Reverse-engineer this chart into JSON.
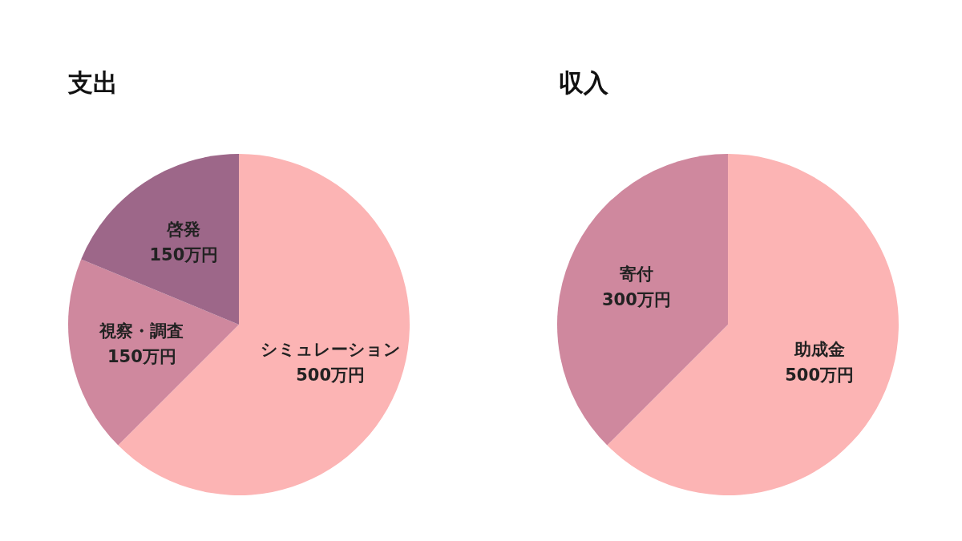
{
  "chart_data": [
    {
      "type": "pie",
      "title": "支出",
      "categories": [
        "シミュレーション",
        "視察・調査",
        "啓発"
      ],
      "values": [
        500,
        150,
        150
      ],
      "colors": [
        "#fcb4b4",
        "#cf889e",
        "#9d6789"
      ],
      "value_labels": [
        "500万円",
        "150万円",
        "150万円"
      ]
    },
    {
      "type": "pie",
      "title": "収入",
      "categories": [
        "助成金",
        "寄付"
      ],
      "values": [
        500,
        300
      ],
      "colors": [
        "#fcb4b4",
        "#cf889e"
      ],
      "value_labels": [
        "500万円",
        "300万円"
      ]
    }
  ]
}
